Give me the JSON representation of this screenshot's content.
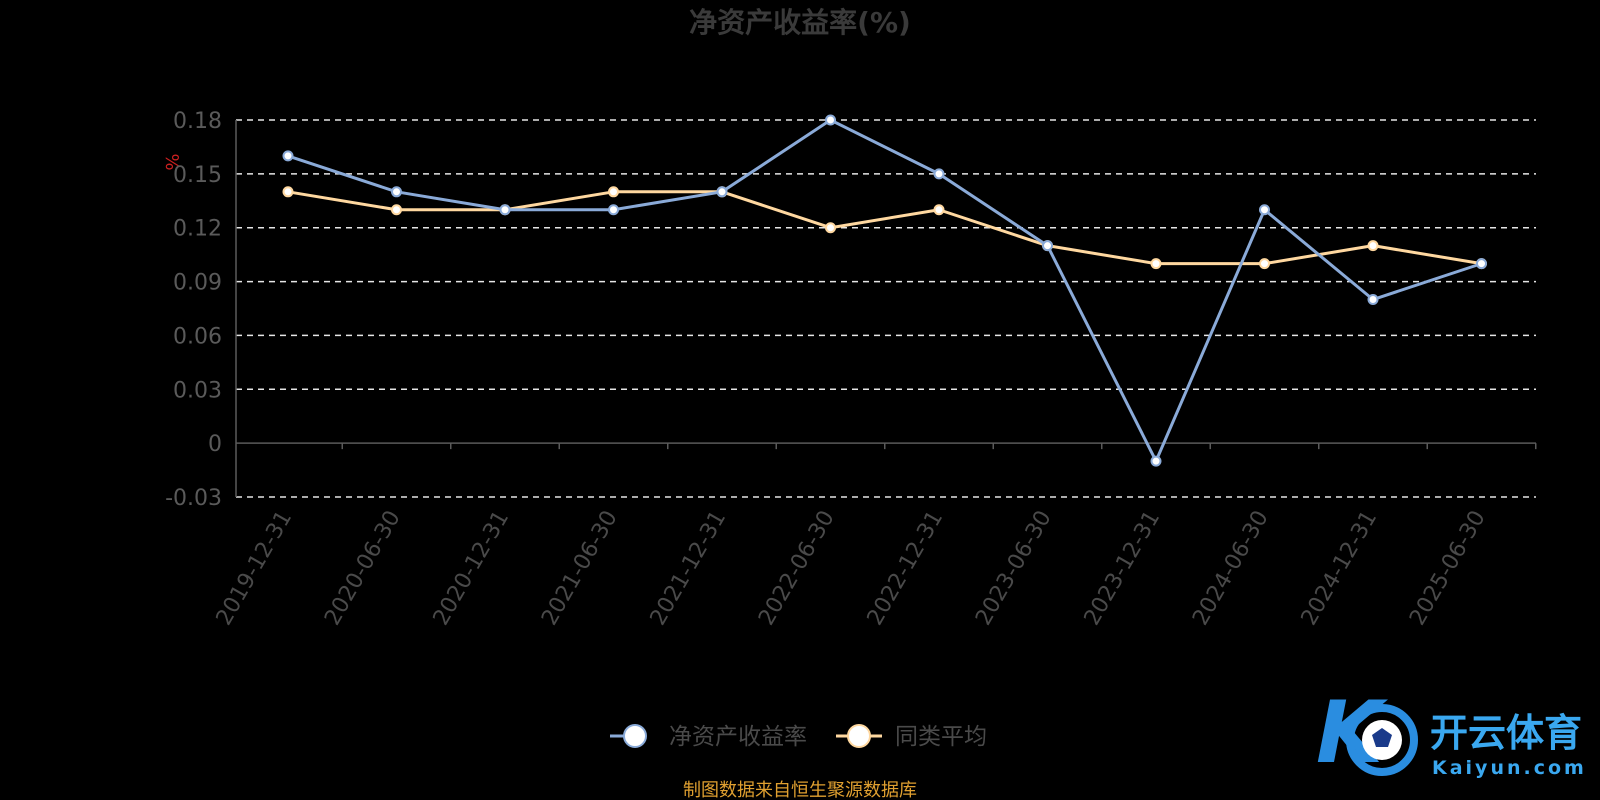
{
  "chart_data": {
    "type": "line",
    "title": "净资产收益率(%)",
    "ylabel": "%",
    "categories": [
      "2019-12-31",
      "2020-06-30",
      "2020-12-31",
      "2021-06-30",
      "2021-12-31",
      "2022-06-30",
      "2022-12-31",
      "2023-06-30",
      "2023-12-31",
      "2024-06-30",
      "2024-12-31",
      "2025-06-30"
    ],
    "series": [
      {
        "name": "净资产收益率",
        "values": [
          0.16,
          0.14,
          0.13,
          0.13,
          0.14,
          0.18,
          0.15,
          0.11,
          -0.01,
          0.13,
          0.08,
          0.1
        ],
        "color": "#8aaad8"
      },
      {
        "name": "同类平均",
        "values": [
          0.14,
          0.13,
          0.13,
          0.14,
          0.14,
          0.12,
          0.13,
          0.11,
          0.1,
          0.1,
          0.11,
          0.1
        ],
        "color": "#ffd8a0"
      }
    ],
    "yticks": [
      "0.18",
      "0.15",
      "0.12",
      "0.09",
      "0.06",
      "0.03",
      "0",
      "-0.03"
    ],
    "ylim": [
      -0.03,
      0.18
    ],
    "grid": true,
    "legend_position": "bottom-center"
  },
  "source_note": "制图数据来自恒生聚源数据库",
  "watermark": {
    "brand_cn": "开云体育",
    "brand_en": "Kaiyun.com"
  }
}
